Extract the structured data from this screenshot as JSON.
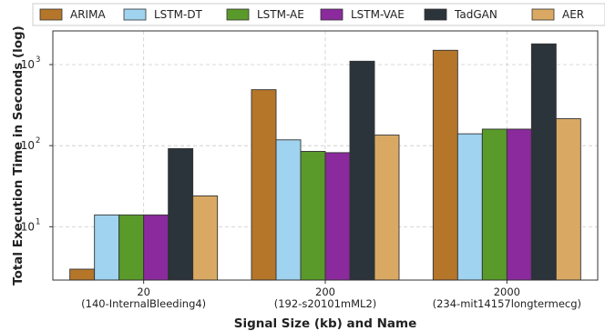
{
  "chart_data": {
    "type": "bar",
    "title": "",
    "xlabel": "Signal Size (kb) and Name",
    "ylabel": "Total Execution Time in Seconds (log)",
    "yscale": "log",
    "ylim": [
      2.2,
      2600
    ],
    "yticks": [
      {
        "value": 10,
        "label": "10"
      },
      {
        "value": 100,
        "label": "10"
      },
      {
        "value": 1000,
        "label": "10"
      }
    ],
    "ytick_exponents": [
      "1",
      "2",
      "3"
    ],
    "grid": true,
    "legend_position": "top",
    "categories": [
      {
        "size": "20",
        "name": "(140-InternalBleeding4)"
      },
      {
        "size": "200",
        "name": "(192-s20101mML2)"
      },
      {
        "size": "2000",
        "name": "(234-mit14157longtermecg)"
      }
    ],
    "series": [
      {
        "name": "ARIMA",
        "color": "#b5762a",
        "values": [
          3,
          490,
          1500
        ]
      },
      {
        "name": "LSTM-DT",
        "color": "#9fd3ef",
        "values": [
          14,
          118,
          140
        ]
      },
      {
        "name": "LSTM-AE",
        "color": "#5a9a2b",
        "values": [
          14,
          85,
          160
        ]
      },
      {
        "name": "LSTM-VAE",
        "color": "#8a2a9c",
        "values": [
          14,
          82,
          160
        ]
      },
      {
        "name": "TadGAN",
        "color": "#2b333b",
        "values": [
          92,
          1100,
          1800
        ]
      },
      {
        "name": "AER",
        "color": "#d9a964",
        "values": [
          24,
          135,
          215
        ]
      }
    ]
  }
}
